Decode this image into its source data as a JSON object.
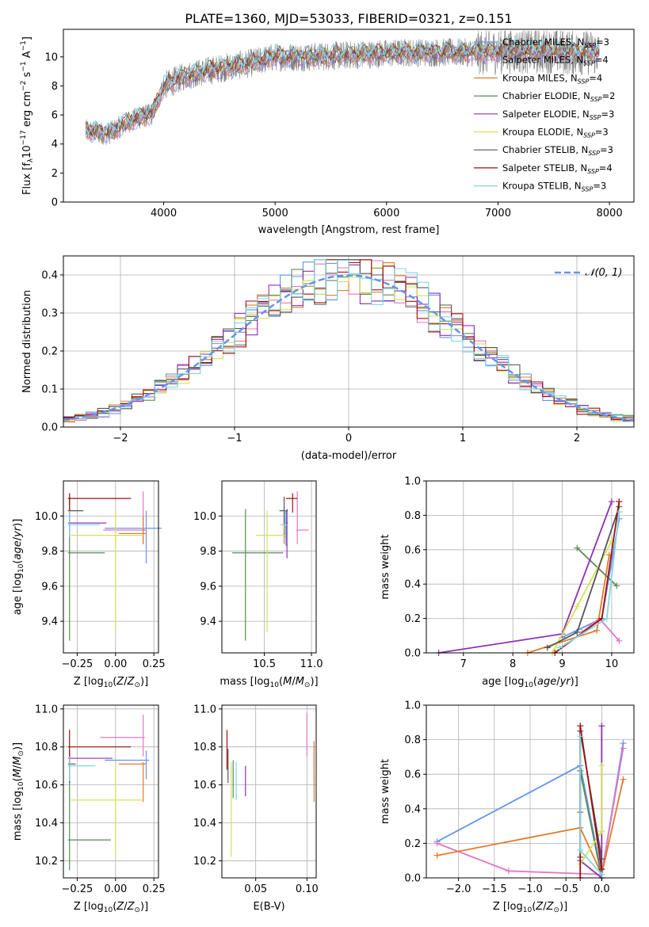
{
  "figure": {
    "title": "PLATE=1360, MJD=53033, FIBERID=0321, z=0.151",
    "colors": {
      "chabrier_miles": "#6495ed",
      "salpeter_miles": "#e377c2",
      "kroupa_miles": "#e07b28",
      "chabrier_elodie": "#5a8a5a",
      "salpeter_elodie": "#8e2fb5",
      "kroupa_elodie": "#d4e157",
      "chabrier_stelib": "#555555",
      "salpeter_stelib": "#a01010",
      "kroupa_stelib": "#80d8e0",
      "observed": "#808080",
      "gauss": "#6495ed",
      "grid": "#b0b0b0"
    }
  },
  "chart_data": [
    {
      "id": "spectrum",
      "type": "line",
      "xlabel": "wavelength [Angstrom, rest frame]",
      "ylabel": "Flux [f_λ10^-17 erg cm^-2 s^-1 A^-1]",
      "xlim": [
        3100,
        8220
      ],
      "ylim": [
        0,
        11.9
      ],
      "xticks": [
        4000,
        5000,
        6000,
        7000,
        8000
      ],
      "yticks": [
        0,
        2,
        4,
        6,
        8,
        10
      ],
      "grid": false,
      "legend_position": "right",
      "legend": [
        {
          "base": "Chabrier MILES, N",
          "n": "3"
        },
        {
          "base": "Salpeter MILES, N",
          "n": "4"
        },
        {
          "base": "Kroupa MILES, N",
          "n": "4"
        },
        {
          "base": "Chabrier ELODIE, N",
          "n": "2"
        },
        {
          "base": "Salpeter ELODIE, N",
          "n": "3"
        },
        {
          "base": "Kroupa ELODIE, N",
          "n": "3"
        },
        {
          "base": "Chabrier STELIB, N",
          "n": "3"
        },
        {
          "base": "Salpeter STELIB, N",
          "n": "4"
        },
        {
          "base": "Kroupa STELIB, N",
          "n": "3"
        }
      ],
      "continuum": {
        "x": [
          3300,
          3500,
          3700,
          3900,
          4000,
          4200,
          4500,
          4800,
          5000,
          5300,
          5600,
          5900,
          6200,
          6500,
          6800,
          7100,
          7400,
          7700,
          7900
        ],
        "y": [
          4.9,
          4.7,
          5.6,
          6.1,
          8.0,
          8.7,
          9.2,
          9.6,
          10.0,
          10.0,
          10.1,
          10.2,
          10.3,
          10.3,
          10.3,
          10.4,
          10.4,
          10.3,
          10.3
        ]
      }
    },
    {
      "id": "residuals",
      "type": "histogram",
      "xlabel": "(data-model)/error",
      "ylabel": "Normed distribution",
      "xlim": [
        -2.5,
        2.5
      ],
      "ylim": [
        0,
        0.45
      ],
      "xticks": [
        -2,
        -1,
        0,
        1,
        2
      ],
      "xticklabels": [
        "−2",
        "−1",
        "0",
        "1",
        "2"
      ],
      "yticks": [
        0.0,
        0.1,
        0.2,
        0.3,
        0.4
      ],
      "yticklabels": [
        "0.0",
        "0.1",
        "0.2",
        "0.3",
        "0.4"
      ],
      "grid": true,
      "legend_label": "𝒩(0, 1)",
      "legend_position": "upper right",
      "bin_width": 0.1
    },
    {
      "id": "age_vs_Z",
      "type": "errorbar",
      "xlabel": "Z [log10(Z/Z⊙)]",
      "ylabel": "age [log10(age/yr)]",
      "xlim": [
        -0.34,
        0.28
      ],
      "ylim": [
        9.22,
        10.2
      ],
      "xticks": [
        -0.25,
        0.0,
        0.25
      ],
      "xticklabels": [
        "−0.25",
        "0.00",
        "0.25"
      ],
      "yticks": [
        9.4,
        9.6,
        9.8,
        10.0
      ],
      "yticklabels": [
        "9.4",
        "9.6",
        "9.8",
        "10.0"
      ],
      "grid": true,
      "points": [
        {
          "m": "chabrier_miles",
          "x": 0.2,
          "xerr": [
            0.27,
            0.1
          ],
          "y": 9.93,
          "yerr": [
            0.2,
            0.1
          ]
        },
        {
          "m": "salpeter_miles",
          "x": 0.18,
          "xerr": [
            0.26,
            0.02
          ],
          "y": 9.92,
          "yerr": [
            0.08,
            0.22
          ]
        },
        {
          "m": "kroupa_miles",
          "x": 0.18,
          "xerr": [
            0.16,
            0.02
          ],
          "y": 9.9,
          "yerr": [
            0.06,
            0.1
          ]
        },
        {
          "m": "chabrier_elodie",
          "x": -0.3,
          "xerr": [
            0.01,
            0.23
          ],
          "y": 9.79,
          "yerr": [
            0.5,
            0.25
          ]
        },
        {
          "m": "salpeter_elodie",
          "x": -0.3,
          "xerr": [
            0.01,
            0.24
          ],
          "y": 9.96,
          "yerr": [
            0.08,
            0.08
          ]
        },
        {
          "m": "kroupa_elodie",
          "x": 0.0,
          "xerr": [
            0.29,
            0.18
          ],
          "y": 9.89,
          "yerr": [
            0.55,
            0.14
          ]
        },
        {
          "m": "chabrier_stelib",
          "x": -0.3,
          "xerr": [
            0.01,
            0.09
          ],
          "y": 10.03,
          "yerr": [
            0.08,
            0.08
          ]
        },
        {
          "m": "salpeter_stelib",
          "x": -0.3,
          "xerr": [
            0.01,
            0.4
          ],
          "y": 10.1,
          "yerr": [
            0.08,
            0.03
          ]
        },
        {
          "m": "kroupa_stelib",
          "x": -0.3,
          "xerr": [
            0.01,
            0.2
          ],
          "y": 9.95,
          "yerr": [
            0.07,
            0.08
          ]
        }
      ]
    },
    {
      "id": "age_vs_mass",
      "type": "errorbar",
      "xlabel": "mass [log10(M/M⊙)]",
      "ylabel": "",
      "xlim": [
        10.05,
        11.05
      ],
      "ylim": [
        9.22,
        10.2
      ],
      "xticks": [
        10.5,
        11.0
      ],
      "xticklabels": [
        "10.5",
        "11.0"
      ],
      "yticks": [
        9.4,
        9.6,
        9.8,
        10.0
      ],
      "yticklabels": [
        "9.4",
        "9.6",
        "9.8",
        "10.0"
      ],
      "grid": true,
      "points": [
        {
          "m": "chabrier_miles",
          "x": 10.73,
          "xerr": [
            0.01,
            0.01
          ],
          "y": 9.93,
          "yerr": [
            0.1,
            0.1
          ]
        },
        {
          "m": "salpeter_miles",
          "x": 10.85,
          "xerr": [
            0.01,
            0.12
          ],
          "y": 9.92,
          "yerr": [
            0.08,
            0.22
          ]
        },
        {
          "m": "kroupa_miles",
          "x": 10.71,
          "xerr": [
            0.01,
            0.01
          ],
          "y": 9.9,
          "yerr": [
            0.06,
            0.1
          ]
        },
        {
          "m": "chabrier_elodie",
          "x": 10.3,
          "xerr": [
            0.14,
            0.4
          ],
          "y": 9.79,
          "yerr": [
            0.5,
            0.25
          ]
        },
        {
          "m": "salpeter_elodie",
          "x": 10.74,
          "xerr": [
            0.01,
            0.01
          ],
          "y": 9.96,
          "yerr": [
            0.2,
            0.08
          ]
        },
        {
          "m": "kroupa_elodie",
          "x": 10.53,
          "xerr": [
            0.12,
            0.2
          ],
          "y": 9.89,
          "yerr": [
            0.55,
            0.14
          ]
        },
        {
          "m": "chabrier_stelib",
          "x": 10.71,
          "xerr": [
            0.05,
            0.04
          ],
          "y": 10.03,
          "yerr": [
            0.08,
            0.08
          ]
        },
        {
          "m": "salpeter_stelib",
          "x": 10.8,
          "xerr": [
            0.07,
            0.05
          ],
          "y": 10.1,
          "yerr": [
            0.08,
            0.03
          ]
        },
        {
          "m": "kroupa_stelib",
          "x": 10.72,
          "xerr": [
            0.05,
            0.02
          ],
          "y": 9.95,
          "yerr": [
            0.07,
            0.08
          ]
        }
      ]
    },
    {
      "id": "weight_vs_age",
      "type": "line",
      "xlabel": "age [log10(age/yr)]",
      "ylabel": "mass weight",
      "xlim": [
        6.25,
        10.45
      ],
      "ylim": [
        0,
        1.0
      ],
      "xticks": [
        7,
        8,
        9,
        10
      ],
      "xticklabels": [
        "7",
        "8",
        "9",
        "10"
      ],
      "yticks": [
        0.0,
        0.2,
        0.4,
        0.6,
        0.8,
        1.0
      ],
      "yticklabels": [
        "0.0",
        "0.2",
        "0.4",
        "0.6",
        "0.8",
        "1.0"
      ],
      "grid": true,
      "series": [
        {
          "m": "chabrier_miles",
          "x": [
            9.0,
            9.8,
            10.15
          ],
          "y": [
            0.09,
            0.2,
            0.78
          ]
        },
        {
          "m": "salpeter_miles",
          "x": [
            9.4,
            9.75,
            10.15
          ],
          "y": [
            0.12,
            0.2,
            0.07
          ]
        },
        {
          "m": "kroupa_miles",
          "x": [
            8.3,
            9.7,
            9.95
          ],
          "y": [
            0.0,
            0.13,
            0.57
          ]
        },
        {
          "m": "chabrier_elodie",
          "x": [
            9.3,
            10.1
          ],
          "y": [
            0.61,
            0.39
          ]
        },
        {
          "m": "salpeter_elodie",
          "x": [
            6.5,
            9.0,
            10.0
          ],
          "y": [
            0.0,
            0.11,
            0.88
          ]
        },
        {
          "m": "kroupa_elodie",
          "x": [
            8.8,
            9.3,
            10.0
          ],
          "y": [
            0.0,
            0.27,
            0.65
          ]
        },
        {
          "m": "chabrier_stelib",
          "x": [
            8.7,
            9.3,
            10.15
          ],
          "y": [
            0.03,
            0.12,
            0.85
          ]
        },
        {
          "m": "salpeter_stelib",
          "x": [
            8.85,
            9.8,
            10.15
          ],
          "y": [
            0.0,
            0.2,
            0.88
          ]
        },
        {
          "m": "kroupa_stelib",
          "x": [
            8.95,
            9.9,
            10.15
          ],
          "y": [
            0.03,
            0.2,
            0.82
          ]
        }
      ]
    },
    {
      "id": "mass_vs_Z",
      "type": "errorbar",
      "xlabel": "Z [log10(Z/Z⊙)]",
      "ylabel": "mass [log10(M/M⊙)]",
      "xlim": [
        -0.34,
        0.28
      ],
      "ylim": [
        10.11,
        11.02
      ],
      "xticks": [
        -0.25,
        0.0,
        0.25
      ],
      "xticklabels": [
        "−0.25",
        "0.00",
        "0.25"
      ],
      "yticks": [
        10.2,
        10.4,
        10.6,
        10.8,
        11.0
      ],
      "yticklabels": [
        "10.2",
        "10.4",
        "10.6",
        "10.8",
        "11.0"
      ],
      "grid": true,
      "points": [
        {
          "m": "chabrier_miles",
          "x": 0.2,
          "xerr": [
            0.27,
            0.02
          ],
          "y": 10.73,
          "yerr": [
            0.1,
            0.05
          ]
        },
        {
          "m": "salpeter_miles",
          "x": 0.18,
          "xerr": [
            0.28,
            0.01
          ],
          "y": 10.85,
          "yerr": [
            0.1,
            0.12
          ]
        },
        {
          "m": "kroupa_miles",
          "x": 0.18,
          "xerr": [
            0.16,
            0.02
          ],
          "y": 10.71,
          "yerr": [
            0.2,
            0.01
          ]
        },
        {
          "m": "chabrier_elodie",
          "x": -0.3,
          "xerr": [
            0.01,
            0.27
          ],
          "y": 10.31,
          "yerr": [
            0.16,
            0.4
          ]
        },
        {
          "m": "salpeter_elodie",
          "x": -0.3,
          "xerr": [
            0.01,
            0.28
          ],
          "y": 10.74,
          "yerr": [
            0.04,
            0.04
          ]
        },
        {
          "m": "kroupa_elodie",
          "x": 0.0,
          "xerr": [
            0.29,
            0.18
          ],
          "y": 10.52,
          "yerr": [
            0.3,
            0.2
          ]
        },
        {
          "m": "chabrier_stelib",
          "x": -0.3,
          "xerr": [
            0.01,
            0.04
          ],
          "y": 10.71,
          "yerr": [
            0.1,
            0.05
          ]
        },
        {
          "m": "salpeter_stelib",
          "x": -0.3,
          "xerr": [
            0.01,
            0.4
          ],
          "y": 10.8,
          "yerr": [
            0.1,
            0.09
          ]
        },
        {
          "m": "kroupa_stelib",
          "x": -0.3,
          "xerr": [
            0.01,
            0.17
          ],
          "y": 10.7,
          "yerr": [
            0.08,
            0.05
          ]
        }
      ]
    },
    {
      "id": "mass_vs_ebv",
      "type": "errorbar",
      "xlabel": "E(B-V)",
      "ylabel": "",
      "xlim": [
        0.017,
        0.109
      ],
      "ylim": [
        10.11,
        11.02
      ],
      "xticks": [
        0.05,
        0.1
      ],
      "xticklabels": [
        "0.05",
        "0.10"
      ],
      "yticks": [
        10.2,
        10.4,
        10.6,
        10.8,
        11.0
      ],
      "yticklabels": [
        "10.2",
        "10.4",
        "10.6",
        "10.8",
        "11.0"
      ],
      "grid": true,
      "points": [
        {
          "m": "chabrier_miles",
          "x": 0.107,
          "y": 10.73,
          "yerr": [
            0.1,
            0.1
          ]
        },
        {
          "m": "salpeter_miles",
          "x": 0.1,
          "y": 10.85,
          "yerr": [
            0.1,
            0.13
          ]
        },
        {
          "m": "kroupa_miles",
          "x": 0.107,
          "y": 10.71,
          "yerr": [
            0.2,
            0.12
          ]
        },
        {
          "m": "chabrier_elodie",
          "x": 0.028,
          "y": 10.65,
          "yerr": [
            0.12,
            0.08
          ]
        },
        {
          "m": "salpeter_elodie",
          "x": 0.04,
          "y": 10.62,
          "yerr": [
            0.08,
            0.08
          ]
        },
        {
          "m": "kroupa_elodie",
          "x": 0.026,
          "y": 10.52,
          "yerr": [
            0.3,
            0.2
          ]
        },
        {
          "m": "chabrier_stelib",
          "x": 0.023,
          "y": 10.71,
          "yerr": [
            0.1,
            0.08
          ]
        },
        {
          "m": "salpeter_stelib",
          "x": 0.022,
          "y": 10.8,
          "yerr": [
            0.12,
            0.09
          ]
        },
        {
          "m": "kroupa_stelib",
          "x": 0.031,
          "y": 10.62,
          "yerr": [
            0.1,
            0.1
          ]
        }
      ]
    },
    {
      "id": "weight_vs_Z",
      "type": "line",
      "xlabel": "Z [log10(Z/Z⊙)]",
      "ylabel": "mass weight",
      "xlim": [
        -2.45,
        0.45
      ],
      "ylim": [
        0,
        1.0
      ],
      "xticks": [
        -2.0,
        -1.5,
        -1.0,
        -0.5,
        0.0
      ],
      "xticklabels": [
        "−2.0",
        "−1.5",
        "−1.0",
        "−0.5",
        "0.0"
      ],
      "yticks": [
        0.0,
        0.2,
        0.4,
        0.6,
        0.8,
        1.0
      ],
      "yticklabels": [
        "0.0",
        "0.2",
        "0.4",
        "0.6",
        "0.8",
        "1.0"
      ],
      "grid": true,
      "series": [
        {
          "m": "chabrier_miles",
          "x": [
            -2.3,
            -0.3,
            0.0,
            0.3
          ],
          "y": [
            0.21,
            0.65,
            0.02,
            0.78
          ]
        },
        {
          "m": "salpeter_miles",
          "x": [
            -2.3,
            -1.3,
            0.0,
            0.3
          ],
          "y": [
            0.2,
            0.04,
            0.02,
            0.75
          ]
        },
        {
          "m": "kroupa_miles",
          "x": [
            -2.3,
            -0.3,
            0.0,
            0.3
          ],
          "y": [
            0.13,
            0.29,
            0.02,
            0.57
          ]
        },
        {
          "m": "chabrier_elodie",
          "x": [
            -0.3,
            -0.3,
            0.0
          ],
          "y": [
            0.38,
            0.62,
            0.0
          ]
        },
        {
          "m": "salpeter_elodie",
          "x": [
            -0.3,
            0.0,
            0.0
          ],
          "y": [
            0.1,
            0.0,
            0.88
          ]
        },
        {
          "m": "kroupa_elodie",
          "x": [
            -0.3,
            0.0,
            0.0
          ],
          "y": [
            0.08,
            0.27,
            0.65
          ]
        },
        {
          "m": "chabrier_stelib",
          "x": [
            -0.3,
            -0.3,
            0.0
          ],
          "y": [
            0.12,
            0.85,
            0.11
          ]
        },
        {
          "m": "salpeter_stelib",
          "x": [
            -0.3,
            -0.3,
            0.0
          ],
          "y": [
            0.0,
            0.88,
            0.05
          ]
        },
        {
          "m": "kroupa_stelib",
          "x": [
            -0.3,
            -0.3,
            0.0
          ],
          "y": [
            0.82,
            0.16,
            0.02
          ]
        }
      ]
    }
  ]
}
